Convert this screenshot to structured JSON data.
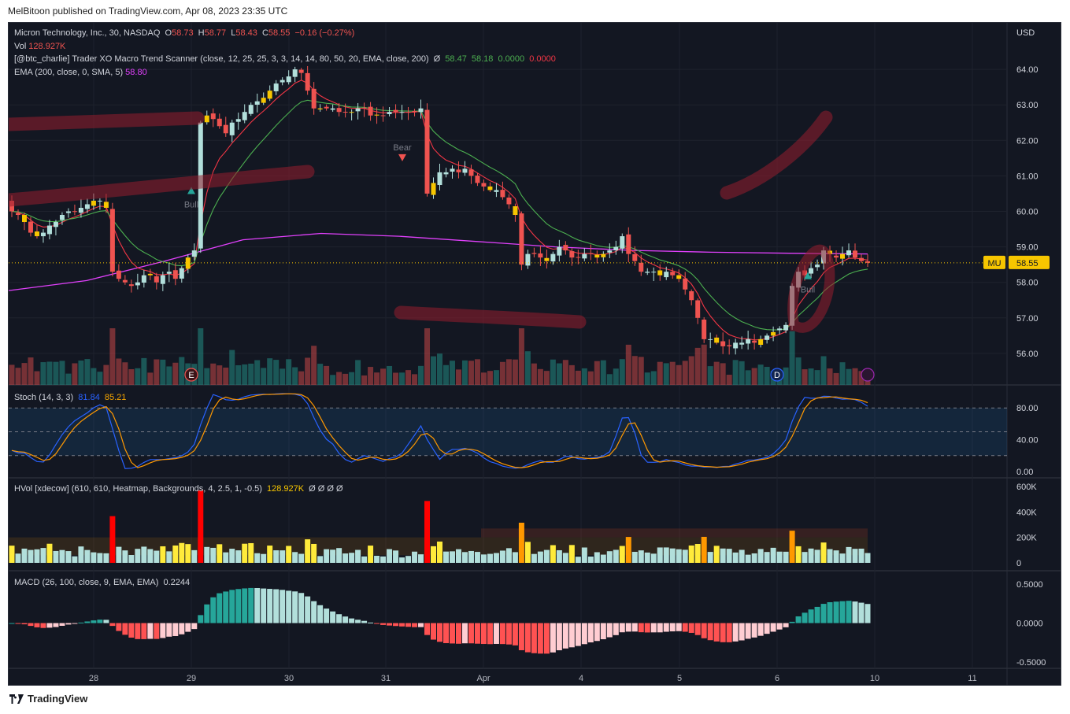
{
  "header": {
    "publisher_line": "MelBitoon published on TradingView.com, Apr 08, 2023 23:35 UTC"
  },
  "footer": {
    "brand": "TradingView"
  },
  "legend": {
    "symbol": "Micron Technology, Inc., 30, NASDAQ",
    "o_label": "O",
    "o": "58.73",
    "h_label": "H",
    "h": "58.77",
    "l_label": "L",
    "l": "58.43",
    "c_label": "C",
    "c": "58.55",
    "change": "−0.16 (−0.27%)",
    "vol_label": "Vol",
    "vol": "128.927K",
    "xo_label": "[@btc_charlie] Trader XO Macro Trend Scanner (close, 12, 25, 25, 3, 3, 14, 14, 80, 50, 20, EMA, close, 200)",
    "xo_na": "Ø",
    "xo_v1": "58.47",
    "xo_v2": "58.18",
    "xo_v3": "0.0000",
    "xo_v4": "0.0000",
    "ema_label": "EMA (200, close, 0, SMA, 5)",
    "ema_val": "58.80",
    "stoch_label": "Stoch (14, 3, 3)",
    "stoch_k": "81.84",
    "stoch_d": "85.21",
    "hvol_label": "HVol [xdecow] (610, 610, Heatmap, Backgrounds, 4, 2.5, 1, -0.5)",
    "hvol_val": "128.927K",
    "hvol_na": "Ø Ø Ø Ø",
    "macd_label": "MACD (26, 100, close, 9, EMA, EMA)",
    "macd_val": "0.2244"
  },
  "colors": {
    "bg": "#131722",
    "grid": "#1e222d",
    "up": "#26a69a",
    "down": "#ef5350",
    "signal_candle": "#f7c600",
    "ema200": "#e040fb",
    "fast_ma": "#f23645",
    "slow_ma": "#4caf50",
    "stoch_k": "#2962ff",
    "stoch_d": "#ff9800",
    "last_price": "#f7c600"
  },
  "chart_data": [
    {
      "type": "candlestick",
      "title": "Micron Technology, Inc., 30, NASDAQ",
      "y_axis_unit": "USD",
      "y_ticks": [
        56.0,
        57.0,
        58.0,
        59.0,
        60.0,
        61.0,
        62.0,
        63.0,
        64.0
      ],
      "x_labels": [
        "28",
        "29",
        "30",
        "31",
        "Apr",
        "4",
        "5",
        "6",
        "10",
        "11"
      ],
      "last_price_tag": {
        "symbol": "MU",
        "value": "58.55"
      },
      "markers": [
        {
          "label": "Bull",
          "price": 60.6,
          "kind": "up"
        },
        {
          "label": "Bear",
          "price": 61.5,
          "kind": "down"
        },
        {
          "label": "Bull",
          "price": 58.2,
          "kind": "up"
        }
      ],
      "event_badges": [
        "E",
        "D"
      ],
      "close_path": [
        60.0,
        59.9,
        59.7,
        59.4,
        59.3,
        59.4,
        59.6,
        59.7,
        59.9,
        60.0,
        60.0,
        60.1,
        60.2,
        60.3,
        60.3,
        60.1,
        58.3,
        58.1,
        58.0,
        57.9,
        58.0,
        58.2,
        58.2,
        58.0,
        58.2,
        58.3,
        58.1,
        58.4,
        58.7,
        58.9,
        62.5,
        62.7,
        62.6,
        62.4,
        62.2,
        62.5,
        62.6,
        62.8,
        63.0,
        63.1,
        63.2,
        63.4,
        63.6,
        63.7,
        63.8,
        64.0,
        63.9,
        63.4,
        62.9,
        62.9,
        62.9,
        62.9,
        62.8,
        62.8,
        62.8,
        62.9,
        62.9,
        62.7,
        62.7,
        62.7,
        62.8,
        62.8,
        62.8,
        62.8,
        62.8,
        62.9,
        60.5,
        60.8,
        61.1,
        61.1,
        61.2,
        61.1,
        61.2,
        61.0,
        60.8,
        60.7,
        60.6,
        60.6,
        60.4,
        60.2,
        59.9,
        58.5,
        58.8,
        58.8,
        58.7,
        58.6,
        58.8,
        59.0,
        58.9,
        58.7,
        58.7,
        58.8,
        58.8,
        58.7,
        58.8,
        58.9,
        59.0,
        59.3,
        58.8,
        58.6,
        58.3,
        58.3,
        58.3,
        58.2,
        58.3,
        58.2,
        58.1,
        57.8,
        57.5,
        57.0,
        56.4,
        56.4,
        56.3,
        56.2,
        56.2,
        56.3,
        56.3,
        56.4,
        56.3,
        56.4,
        56.5,
        56.6,
        56.7,
        56.8,
        57.9,
        58.3,
        58.2,
        58.4,
        58.5,
        58.9,
        58.8,
        58.7,
        58.8,
        58.9,
        58.7,
        58.6,
        58.55
      ],
      "ema200": [
        57.77,
        58.05,
        58.6,
        59.2,
        59.38,
        59.3,
        59.15,
        59.0,
        58.9,
        58.85,
        58.82,
        58.8
      ],
      "fast_ma_label": "58.47",
      "slow_ma_label": "58.18"
    },
    {
      "type": "bar",
      "title": "Vol",
      "last_value": "128.927K"
    },
    {
      "type": "line",
      "title": "Stoch (14, 3, 3)",
      "y_ticks": [
        0.0,
        40.0,
        80.0
      ],
      "bands": [
        20,
        50,
        80
      ],
      "series": [
        {
          "name": "%K",
          "last": 81.84
        },
        {
          "name": "%D",
          "last": 85.21
        }
      ]
    },
    {
      "type": "bar",
      "title": "HVol [xdecow]",
      "y_ticks": [
        "0",
        "200K",
        "400K",
        "600K"
      ],
      "last_value": "128.927K"
    },
    {
      "type": "bar",
      "title": "MACD (26, 100, close, 9, EMA, EMA)",
      "y_ticks": [
        "-0.5000",
        "0.0000",
        "0.5000"
      ],
      "last_value": 0.2244
    }
  ]
}
